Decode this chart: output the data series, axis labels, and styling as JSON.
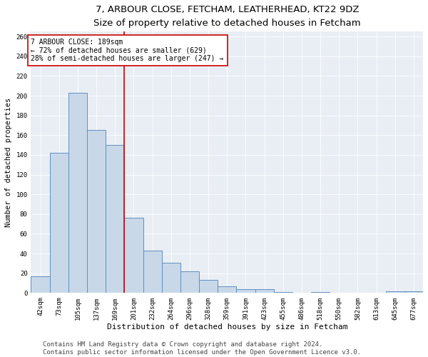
{
  "title1": "7, ARBOUR CLOSE, FETCHAM, LEATHERHEAD, KT22 9DZ",
  "title2": "Size of property relative to detached houses in Fetcham",
  "xlabel": "Distribution of detached houses by size in Fetcham",
  "ylabel": "Number of detached properties",
  "categories": [
    "42sqm",
    "73sqm",
    "105sqm",
    "137sqm",
    "169sqm",
    "201sqm",
    "232sqm",
    "264sqm",
    "296sqm",
    "328sqm",
    "359sqm",
    "391sqm",
    "423sqm",
    "455sqm",
    "486sqm",
    "518sqm",
    "550sqm",
    "582sqm",
    "613sqm",
    "645sqm",
    "677sqm"
  ],
  "values": [
    17,
    142,
    203,
    165,
    150,
    76,
    43,
    31,
    22,
    13,
    7,
    4,
    4,
    1,
    0,
    1,
    0,
    0,
    0,
    2,
    2
  ],
  "bar_color": "#c8d8e8",
  "bar_edge_color": "#6090c0",
  "vline_color": "#cc0000",
  "annotation_text": "7 ARBOUR CLOSE: 189sqm\n← 72% of detached houses are smaller (629)\n28% of semi-detached houses are larger (247) →",
  "annotation_box_color": "#ffffff",
  "annotation_box_edge": "#cc0000",
  "ylim": [
    0,
    265
  ],
  "yticks": [
    0,
    20,
    40,
    60,
    80,
    100,
    120,
    140,
    160,
    180,
    200,
    220,
    240,
    260
  ],
  "footer1": "Contains HM Land Registry data © Crown copyright and database right 2024.",
  "footer2": "Contains public sector information licensed under the Open Government Licence v3.0.",
  "bg_color": "#e8eef4",
  "title1_fontsize": 9.5,
  "title2_fontsize": 8.5,
  "xlabel_fontsize": 8,
  "ylabel_fontsize": 7.5,
  "tick_fontsize": 6.5,
  "annotation_fontsize": 7,
  "footer_fontsize": 6.5,
  "vline_pos": 4.5
}
